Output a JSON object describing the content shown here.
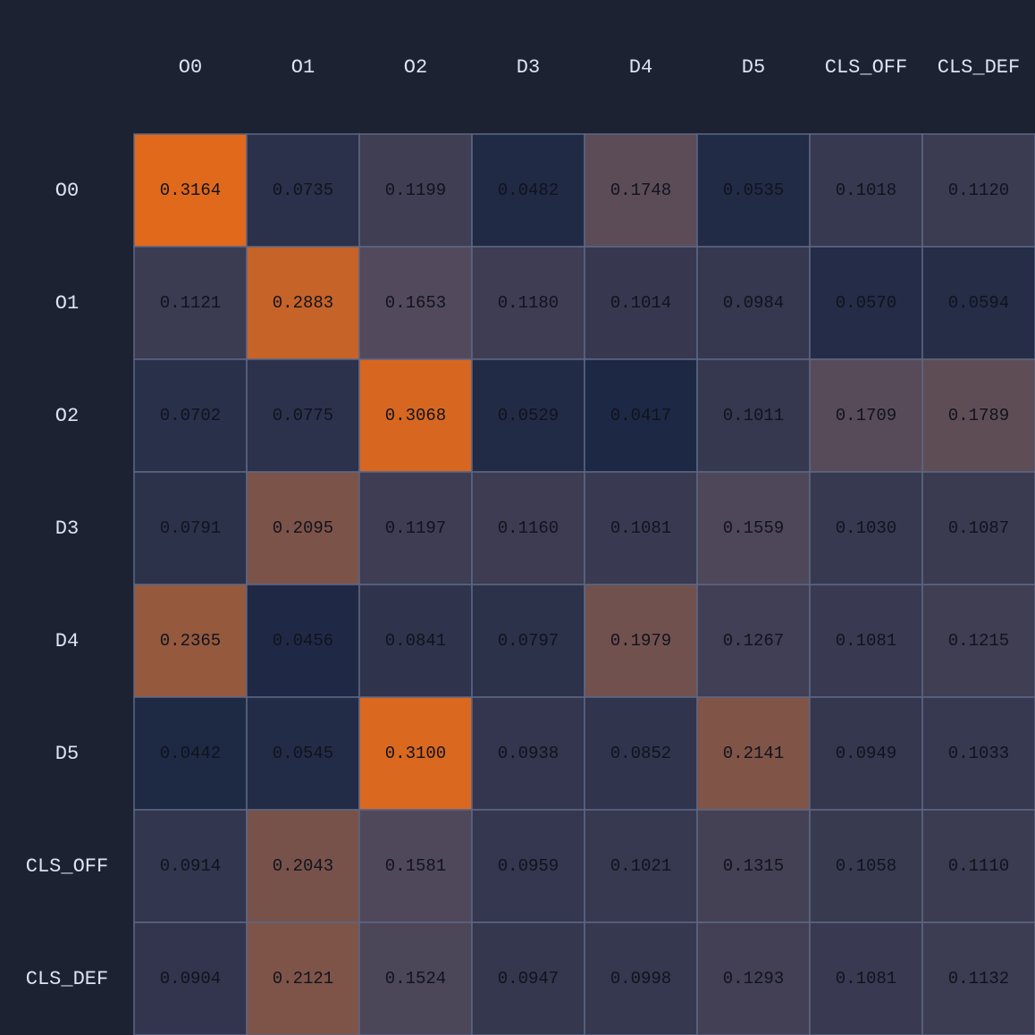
{
  "chart_data": {
    "type": "heatmap",
    "x_labels": [
      "O0",
      "O1",
      "O2",
      "D3",
      "D4",
      "D5",
      "CLS_OFF",
      "CLS_DEF"
    ],
    "y_labels": [
      "O0",
      "O1",
      "O2",
      "D3",
      "D4",
      "D5",
      "CLS_OFF",
      "CLS_DEF"
    ],
    "values": [
      [
        0.3164,
        0.0735,
        0.1199,
        0.0482,
        0.1748,
        0.0535,
        0.1018,
        0.112
      ],
      [
        0.1121,
        0.2883,
        0.1653,
        0.118,
        0.1014,
        0.0984,
        0.057,
        0.0594
      ],
      [
        0.0702,
        0.0775,
        0.3068,
        0.0529,
        0.0417,
        0.1011,
        0.1709,
        0.1789
      ],
      [
        0.0791,
        0.2095,
        0.1197,
        0.116,
        0.1081,
        0.1559,
        0.103,
        0.1087
      ],
      [
        0.2365,
        0.0456,
        0.0841,
        0.0797,
        0.1979,
        0.1267,
        0.1081,
        0.1215
      ],
      [
        0.0442,
        0.0545,
        0.31,
        0.0938,
        0.0852,
        0.2141,
        0.0949,
        0.1033
      ],
      [
        0.0914,
        0.2043,
        0.1581,
        0.0959,
        0.1021,
        0.1315,
        0.1058,
        0.111
      ],
      [
        0.0904,
        0.2121,
        0.1524,
        0.0947,
        0.0998,
        0.1293,
        0.1081,
        0.1132
      ]
    ],
    "value_labels": [
      [
        "0.3164",
        "0.0735",
        "0.1199",
        "0.0482",
        "0.1748",
        "0.0535",
        "0.1018",
        "0.1120"
      ],
      [
        "0.1121",
        "0.2883",
        "0.1653",
        "0.1180",
        "0.1014",
        "0.0984",
        "0.0570",
        "0.0594"
      ],
      [
        "0.0702",
        "0.0775",
        "0.3068",
        "0.0529",
        "0.0417",
        "0.1011",
        "0.1709",
        "0.1789"
      ],
      [
        "0.0791",
        "0.2095",
        "0.1197",
        "0.1160",
        "0.1081",
        "0.1559",
        "0.1030",
        "0.1087"
      ],
      [
        "0.2365",
        "0.0456",
        "0.0841",
        "0.0797",
        "0.1979",
        "0.1267",
        "0.1081",
        "0.1215"
      ],
      [
        "0.0442",
        "0.0545",
        "0.3100",
        "0.0938",
        "0.0852",
        "0.2141",
        "0.0949",
        "0.1033"
      ],
      [
        "0.0914",
        "0.2043",
        "0.1581",
        "0.0959",
        "0.1021",
        "0.1315",
        "0.1058",
        "0.1110"
      ],
      [
        "0.0904",
        "0.2121",
        "0.1524",
        "0.0947",
        "0.0998",
        "0.1293",
        "0.1081",
        "0.1132"
      ]
    ],
    "color_scale": {
      "low": "#1d2844",
      "high": "#e0691c",
      "background": "#1d2233",
      "grid_line": "#5d6784"
    },
    "label_color": "#dde3f2",
    "value_text_color": "#10131d",
    "title": "",
    "xlabel": "",
    "ylabel": "",
    "legend": false,
    "grid": true
  }
}
